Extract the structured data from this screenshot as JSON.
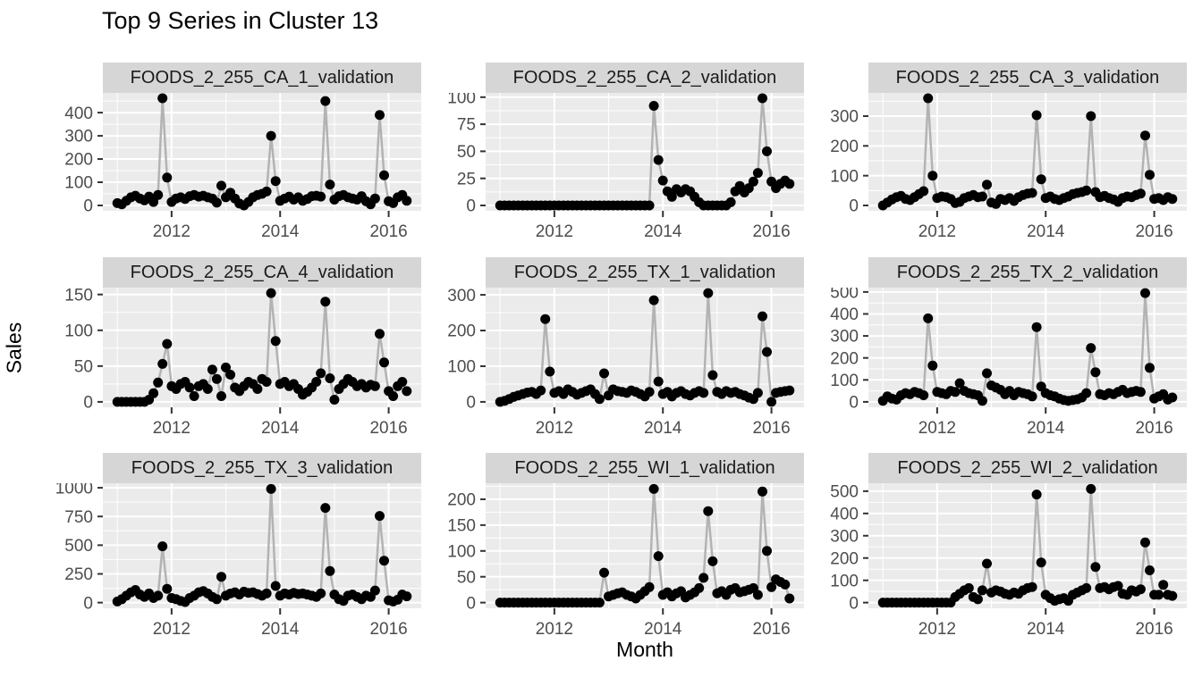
{
  "title": "Top 9 Series in Cluster 13",
  "axes": {
    "x_label": "Month",
    "y_label": "Sales"
  },
  "style": {
    "panel_bg": "#EBEBEB",
    "grid_color": "#FFFFFF",
    "strip_bg": "#D6D6D6",
    "strip_text": "#1A1A1A",
    "axis_text": "#4D4D4D",
    "tick_color": "#333333",
    "line_color": "#B3B3B3",
    "point_color": "#000000",
    "title_color": "#000000"
  },
  "chart_data": {
    "type": "line",
    "title": "Top 9 Series in Cluster 13",
    "xlabel": "Month",
    "ylabel": "Sales",
    "x_start": "2011-01",
    "x_interval": "month",
    "x_tick_years": [
      2012,
      2014,
      2016
    ],
    "x_minor_years": [
      2011,
      2013,
      2015
    ],
    "legend": "none",
    "facets": [
      {
        "title": "FOODS_2_255_CA_1_validation",
        "y_ticks": [
          0,
          100,
          200,
          300,
          400
        ],
        "values": [
          10,
          5,
          20,
          35,
          42,
          30,
          22,
          38,
          15,
          45,
          462,
          120,
          15,
          30,
          35,
          28,
          40,
          45,
          38,
          42,
          35,
          30,
          12,
          85,
          35,
          55,
          30,
          8,
          0,
          15,
          35,
          45,
          50,
          60,
          300,
          105,
          20,
          30,
          38,
          25,
          35,
          20,
          28,
          40,
          42,
          38,
          450,
          90,
          25,
          40,
          45,
          35,
          30,
          25,
          40,
          18,
          5,
          30,
          390,
          130,
          18,
          10,
          35,
          45,
          20
        ]
      },
      {
        "title": "FOODS_2_255_CA_2_validation",
        "y_ticks": [
          0,
          25,
          50,
          75,
          100
        ],
        "values": [
          0,
          0,
          0,
          0,
          0,
          0,
          0,
          0,
          0,
          0,
          0,
          0,
          0,
          0,
          0,
          0,
          0,
          0,
          0,
          0,
          0,
          0,
          0,
          0,
          0,
          0,
          0,
          0,
          0,
          0,
          0,
          0,
          0,
          0,
          92,
          42,
          23,
          13,
          8,
          15,
          12,
          15,
          13,
          8,
          3,
          0,
          0,
          0,
          0,
          0,
          0,
          3,
          13,
          18,
          12,
          16,
          22,
          30,
          99,
          50,
          22,
          16,
          20,
          23,
          20
        ]
      },
      {
        "title": "FOODS_2_255_CA_3_validation",
        "y_ticks": [
          0,
          100,
          200,
          300
        ],
        "values": [
          0,
          10,
          20,
          28,
          32,
          22,
          18,
          28,
          38,
          48,
          360,
          100,
          25,
          30,
          28,
          22,
          8,
          12,
          25,
          30,
          35,
          28,
          30,
          70,
          10,
          5,
          22,
          18,
          25,
          15,
          28,
          35,
          40,
          42,
          303,
          88,
          25,
          30,
          22,
          18,
          25,
          30,
          38,
          42,
          45,
          50,
          300,
          45,
          28,
          32,
          25,
          20,
          12,
          25,
          30,
          28,
          35,
          40,
          235,
          103,
          22,
          25,
          18,
          28,
          22
        ]
      },
      {
        "title": "FOODS_2_255_CA_4_validation",
        "y_ticks": [
          0,
          50,
          100,
          150
        ],
        "values": [
          0,
          0,
          0,
          0,
          0,
          0,
          0,
          3,
          12,
          27,
          53,
          81,
          22,
          18,
          25,
          28,
          20,
          8,
          22,
          25,
          18,
          45,
          32,
          8,
          48,
          38,
          20,
          15,
          22,
          28,
          25,
          18,
          32,
          28,
          152,
          85,
          25,
          28,
          22,
          25,
          18,
          10,
          14,
          20,
          28,
          40,
          140,
          33,
          3,
          18,
          25,
          32,
          28,
          22,
          25,
          20,
          24,
          22,
          95,
          55,
          15,
          8,
          22,
          28,
          15
        ]
      },
      {
        "title": "FOODS_2_255_TX_1_validation",
        "y_ticks": [
          0,
          100,
          200,
          300
        ],
        "values": [
          0,
          3,
          8,
          14,
          18,
          22,
          26,
          28,
          22,
          32,
          232,
          85,
          25,
          30,
          22,
          35,
          28,
          20,
          25,
          30,
          35,
          22,
          8,
          80,
          18,
          35,
          30,
          28,
          25,
          32,
          28,
          22,
          15,
          28,
          285,
          57,
          22,
          28,
          15,
          25,
          30,
          22,
          18,
          25,
          30,
          25,
          305,
          75,
          28,
          22,
          30,
          25,
          28,
          22,
          18,
          12,
          8,
          25,
          240,
          140,
          0,
          25,
          28,
          30,
          32
        ]
      },
      {
        "title": "FOODS_2_255_TX_2_validation",
        "y_ticks": [
          0,
          100,
          200,
          300,
          400,
          500
        ],
        "values": [
          5,
          25,
          15,
          10,
          30,
          40,
          35,
          45,
          40,
          30,
          380,
          165,
          45,
          40,
          35,
          50,
          45,
          85,
          50,
          40,
          35,
          30,
          5,
          130,
          75,
          65,
          55,
          35,
          50,
          30,
          45,
          40,
          35,
          25,
          340,
          70,
          40,
          30,
          25,
          15,
          8,
          5,
          8,
          12,
          20,
          40,
          245,
          135,
          35,
          30,
          40,
          35,
          45,
          55,
          40,
          45,
          50,
          45,
          495,
          155,
          15,
          25,
          35,
          10,
          20
        ]
      },
      {
        "title": "FOODS_2_255_TX_3_validation",
        "y_ticks": [
          0,
          250,
          500,
          750,
          1000
        ],
        "values": [
          10,
          30,
          60,
          90,
          110,
          70,
          50,
          80,
          40,
          60,
          490,
          120,
          40,
          30,
          15,
          5,
          40,
          60,
          90,
          100,
          80,
          50,
          30,
          225,
          60,
          80,
          90,
          70,
          95,
          85,
          90,
          75,
          60,
          80,
          990,
          145,
          60,
          80,
          70,
          85,
          75,
          80,
          70,
          60,
          50,
          80,
          825,
          275,
          70,
          30,
          15,
          60,
          70,
          50,
          30,
          60,
          50,
          105,
          755,
          365,
          20,
          10,
          25,
          70,
          55
        ]
      },
      {
        "title": "FOODS_2_255_WI_1_validation",
        "y_ticks": [
          0,
          50,
          100,
          150,
          200
        ],
        "values": [
          0,
          0,
          0,
          0,
          0,
          0,
          0,
          0,
          0,
          0,
          0,
          0,
          0,
          0,
          0,
          0,
          0,
          0,
          0,
          0,
          0,
          0,
          0,
          58,
          12,
          15,
          18,
          20,
          15,
          12,
          8,
          15,
          22,
          30,
          220,
          90,
          15,
          20,
          12,
          18,
          22,
          10,
          15,
          20,
          28,
          48,
          177,
          80,
          18,
          22,
          15,
          25,
          28,
          20,
          22,
          25,
          28,
          15,
          215,
          100,
          30,
          45,
          40,
          35,
          8
        ]
      },
      {
        "title": "FOODS_2_255_WI_2_validation",
        "y_ticks": [
          0,
          100,
          200,
          300,
          400,
          500
        ],
        "values": [
          0,
          0,
          0,
          0,
          0,
          0,
          0,
          0,
          0,
          0,
          0,
          0,
          0,
          0,
          0,
          0,
          25,
          40,
          55,
          65,
          25,
          15,
          55,
          175,
          45,
          55,
          50,
          40,
          35,
          45,
          40,
          55,
          65,
          70,
          485,
          180,
          35,
          20,
          8,
          15,
          20,
          8,
          35,
          45,
          55,
          65,
          510,
          160,
          65,
          70,
          60,
          70,
          75,
          40,
          35,
          55,
          50,
          60,
          270,
          145,
          35,
          35,
          80,
          35,
          30
        ]
      }
    ]
  }
}
